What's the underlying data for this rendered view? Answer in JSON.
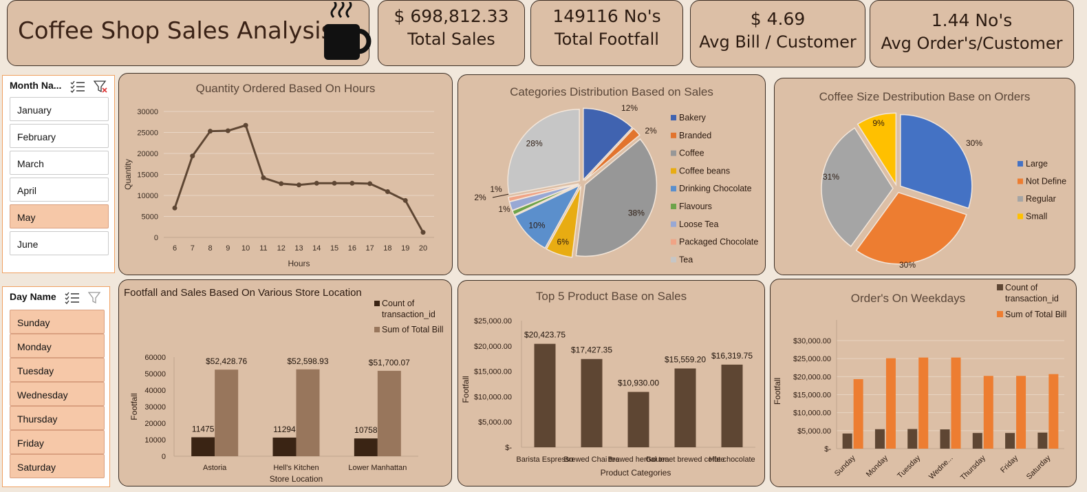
{
  "header": {
    "title": "Coffee Shop Sales Analysis",
    "icon": "coffee-cup-icon"
  },
  "kpis": [
    {
      "value": "$ 698,812.33",
      "label": "Total Sales"
    },
    {
      "value": "149116 No's",
      "label": "Total Footfall"
    },
    {
      "value": "$ 4.69",
      "label": "Avg Bill / Customer"
    },
    {
      "value": "1.44 No's",
      "label": "Avg Order's/Customer"
    }
  ],
  "month_slicer": {
    "header": "Month Na...",
    "items": [
      "January",
      "February",
      "March",
      "April",
      "May",
      "June"
    ],
    "selected": "May"
  },
  "day_slicer": {
    "header": "Day Name",
    "items": [
      "Sunday",
      "Monday",
      "Tuesday",
      "Wednesday",
      "Thursday",
      "Friday",
      "Saturday"
    ]
  },
  "colors": {
    "dark_brown": "#5e4633",
    "light_brown": "#98765c",
    "orange": "#ed7d31",
    "panel": "#dcbfa6"
  },
  "chart_data": [
    {
      "id": "hours",
      "type": "line",
      "title": "Quantity Ordered Based On Hours",
      "xlabel": "Hours",
      "ylabel": "Quantity",
      "x": [
        "6",
        "7",
        "8",
        "9",
        "10",
        "11",
        "12",
        "13",
        "14",
        "15",
        "16",
        "17",
        "18",
        "19",
        "20"
      ],
      "values": [
        7000,
        19400,
        25300,
        25400,
        26700,
        14200,
        12800,
        12500,
        12900,
        12900,
        12900,
        12800,
        10900,
        8800,
        1200
      ],
      "ylim": [
        0,
        30000
      ],
      "yticks": [
        "0",
        "5000",
        "10000",
        "15000",
        "20000",
        "25000",
        "30000"
      ]
    },
    {
      "id": "categories",
      "type": "pie",
      "title": "Categories Distribution Based on Sales",
      "slices": [
        {
          "name": "Bakery",
          "value": 12,
          "label": "12%",
          "color": "#4063b0"
        },
        {
          "name": "Branded",
          "value": 2,
          "label": "2%",
          "color": "#e2742d"
        },
        {
          "name": "Coffee",
          "value": 38,
          "label": "38%",
          "color": "#979797"
        },
        {
          "name": "Coffee beans",
          "value": 6,
          "label": "6%",
          "color": "#e8ac12"
        },
        {
          "name": "Drinking Chocolate",
          "value": 10,
          "label": "10%",
          "color": "#5b8fcc"
        },
        {
          "name": "Flavours",
          "value": 1,
          "label": "1%",
          "color": "#6ea34a"
        },
        {
          "name": "Loose Tea",
          "value": 2,
          "label": "2%",
          "color": "#98a8d4"
        },
        {
          "name": "Packaged Chocolate",
          "value": 1,
          "label": "1%",
          "color": "#f0a486"
        },
        {
          "name": "Tea",
          "value": 28,
          "label": "28%",
          "color": "#c6c6c6"
        }
      ]
    },
    {
      "id": "sizes",
      "type": "pie",
      "title": "Coffee Size Destribution Base on Orders",
      "slices": [
        {
          "name": "Large",
          "value": 30,
          "label": "30%",
          "color": "#4472c4"
        },
        {
          "name": "Not Define",
          "value": 30,
          "label": "30%",
          "color": "#ed7d31"
        },
        {
          "name": "Regular",
          "value": 31,
          "label": "31%",
          "color": "#a5a5a5"
        },
        {
          "name": "Small",
          "value": 9,
          "label": "9%",
          "color": "#ffc000"
        }
      ]
    },
    {
      "id": "stores",
      "type": "bar",
      "title": "Footfall and Sales Based On Various Store Location",
      "xlabel": "Store Location",
      "ylabel": "Footfall",
      "categories": [
        "Astoria",
        "Hell's Kitchen",
        "Lower Manhattan"
      ],
      "series": [
        {
          "name": "Count of transaction_id",
          "values": [
            11475,
            11294,
            10758
          ],
          "labels": [
            "11475",
            "11294",
            "10758"
          ]
        },
        {
          "name": "Sum of Total Bill",
          "values": [
            52428.76,
            52598.93,
            51700.07
          ],
          "labels": [
            "$52,428.76",
            "$52,598.93",
            "$51,700.07"
          ]
        }
      ],
      "ylim": [
        0,
        60000
      ],
      "yticks": [
        "0",
        "10000",
        "20000",
        "30000",
        "40000",
        "50000",
        "60000"
      ]
    },
    {
      "id": "products",
      "type": "bar",
      "title": "Top 5 Product Base on Sales",
      "xlabel": "Product Categories",
      "ylabel": "Footfall",
      "categories": [
        "Barista Espresso",
        "Brewed Chai tea",
        "Brewed herbal tea",
        "Gourmet brewed coffee",
        "Hot chocolate"
      ],
      "values": [
        20423.75,
        17427.35,
        10930.0,
        15559.2,
        16319.75
      ],
      "labels": [
        "$20,423.75",
        "$17,427.35",
        "$10,930.00",
        "$15,559.20",
        "$16,319.75"
      ],
      "ylim": [
        0,
        25000
      ],
      "yticks": [
        "$-",
        "$5,000.00",
        "$10,000.00",
        "$15,000.00",
        "$20,000.00",
        "$25,000.00"
      ]
    },
    {
      "id": "weekdays",
      "type": "bar",
      "title": "Order's On Weekdays",
      "ylabel": "Footfall",
      "categories": [
        "Sunday",
        "Monday",
        "Tuesday",
        "Wedne...",
        "Thursday",
        "Friday",
        "Saturday"
      ],
      "series": [
        {
          "name": "Count of transaction_id",
          "values": [
            4200,
            5400,
            5450,
            5350,
            4350,
            4350,
            4450
          ]
        },
        {
          "name": "Sum of Total Bill",
          "values": [
            19300,
            25100,
            25300,
            25300,
            20200,
            20200,
            20700
          ]
        }
      ],
      "ylim": [
        0,
        30000
      ],
      "yticks": [
        "$-",
        "$5,000.00",
        "$10,000.00",
        "$15,000.00",
        "$20,000.00",
        "$25,000.00",
        "$30,000.00"
      ]
    }
  ]
}
